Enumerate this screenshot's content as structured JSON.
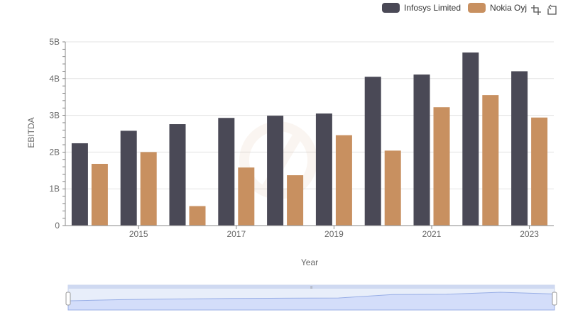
{
  "legend": {
    "items": [
      {
        "label": "Infosys Limited",
        "color": "#4a4956"
      },
      {
        "label": "Nokia Oyj",
        "color": "#c89060"
      }
    ]
  },
  "toolbar": {
    "icons": [
      "box-zoom-icon",
      "restore-icon"
    ]
  },
  "chart_data": {
    "type": "bar",
    "xlabel": "Year",
    "ylabel": "EBITDA",
    "categories": [
      2014,
      2015,
      2016,
      2017,
      2018,
      2019,
      2020,
      2021,
      2022,
      2023
    ],
    "x_tick_labels": [
      "2015",
      "2017",
      "2019",
      "2021",
      "2023"
    ],
    "y_tick_labels": [
      "0",
      "1B",
      "2B",
      "3B",
      "4B",
      "5B"
    ],
    "ylim": [
      0,
      5000000000
    ],
    "grid": true,
    "legend_position": "top-right",
    "series": [
      {
        "name": "Infosys Limited",
        "color": "#4a4956",
        "values": [
          2240000000,
          2580000000,
          2760000000,
          2930000000,
          2990000000,
          3050000000,
          4050000000,
          4110000000,
          4710000000,
          4200000000
        ]
      },
      {
        "name": "Nokia Oyj",
        "color": "#c89060",
        "values": [
          1680000000,
          2000000000,
          530000000,
          1580000000,
          1370000000,
          2460000000,
          2040000000,
          3220000000,
          3550000000,
          2940000000
        ]
      }
    ]
  }
}
